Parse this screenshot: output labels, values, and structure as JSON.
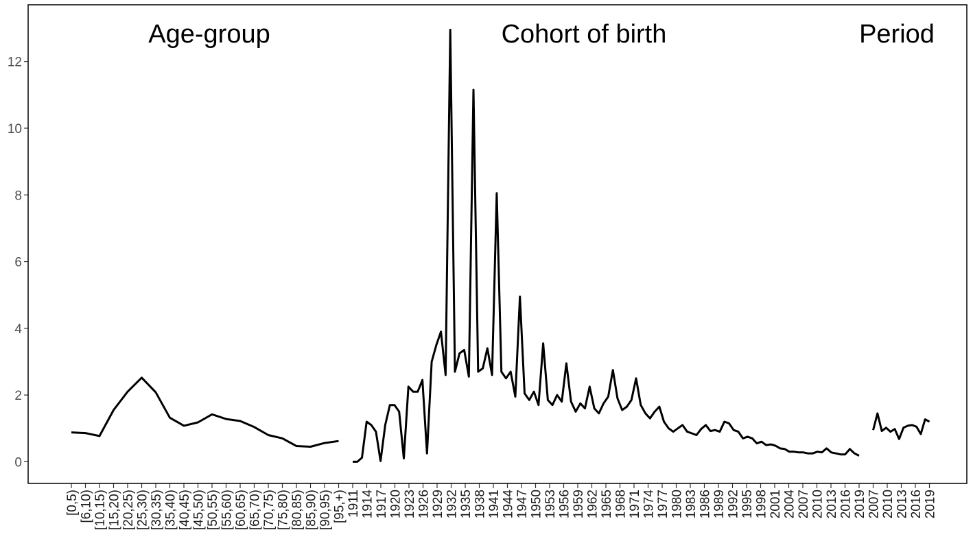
{
  "chart_data": {
    "type": "line",
    "title": "",
    "xlabel": "",
    "ylabel": "",
    "ylim": [
      -0.65,
      13.7
    ],
    "y_ticks": [
      0,
      2,
      4,
      6,
      8,
      10,
      12
    ],
    "y_tick_labels": [
      "0",
      "2",
      "4",
      "6",
      "8",
      "10",
      "12"
    ],
    "grid": false,
    "legend": "none",
    "line_color": "#000000",
    "panels": [
      {
        "name": "Age-group",
        "x": [
          "[0,5)",
          "[6,10)",
          "[10,15)",
          "[15,20)",
          "[20,25)",
          "[25,30)",
          "[30,35)",
          "[35,40)",
          "[40,45)",
          "[45,50)",
          "[50,55)",
          "[55,60)",
          "[60,65)",
          "[65,70)",
          "[70,75)",
          "[75,80)",
          "[80,85)",
          "[85,90)",
          "[90,95)",
          "[95,+)"
        ],
        "values": [
          0.88,
          0.86,
          0.77,
          1.55,
          2.1,
          2.52,
          2.08,
          1.32,
          1.08,
          1.18,
          1.42,
          1.28,
          1.22,
          1.04,
          0.8,
          0.7,
          0.47,
          0.45,
          0.56,
          0.62
        ]
      },
      {
        "name": "Cohort of birth",
        "x_start": 1911,
        "x_end": 2019,
        "tick_labels": [
          "1911",
          "1914",
          "1917",
          "1920",
          "1923",
          "1926",
          "1929",
          "1932",
          "1935",
          "1938",
          "1941",
          "1944",
          "1947",
          "1950",
          "1953",
          "1956",
          "1959",
          "1962",
          "1965",
          "1968",
          "1971",
          "1974",
          "1977",
          "1980",
          "1983",
          "1986",
          "1989",
          "1992",
          "1995",
          "1998",
          "2001",
          "2004",
          "2007",
          "2010",
          "2013",
          "2016",
          "2019"
        ],
        "values": [
          0,
          0,
          0.12,
          1.2,
          1.1,
          0.9,
          0.02,
          1.1,
          1.7,
          1.7,
          1.5,
          0.1,
          2.25,
          2.1,
          2.1,
          2.45,
          0.25,
          3,
          3.5,
          3.9,
          2.6,
          12.95,
          2.7,
          3.25,
          3.35,
          2.55,
          11.15,
          2.7,
          2.8,
          3.4,
          2.6,
          8.05,
          2.7,
          2.5,
          2.7,
          1.95,
          4.95,
          2.05,
          1.85,
          2.1,
          1.7,
          3.55,
          1.85,
          1.7,
          2,
          1.8,
          2.95,
          1.8,
          1.5,
          1.75,
          1.6,
          2.25,
          1.6,
          1.45,
          1.75,
          1.95,
          2.75,
          1.9,
          1.55,
          1.65,
          1.85,
          2.5,
          1.7,
          1.45,
          1.3,
          1.5,
          1.65,
          1.2,
          1,
          0.9,
          1,
          1.1,
          0.9,
          0.85,
          0.8,
          0.98,
          1.1,
          0.92,
          0.95,
          0.9,
          1.2,
          1.15,
          0.95,
          0.9,
          0.7,
          0.75,
          0.7,
          0.55,
          0.6,
          0.5,
          0.52,
          0.48,
          0.4,
          0.38,
          0.3,
          0.3,
          0.28,
          0.28,
          0.25,
          0.25,
          0.3,
          0.28,
          0.4,
          0.28,
          0.25,
          0.22,
          0.22,
          0.38,
          0.25,
          0.18
        ]
      },
      {
        "name": "Period",
        "x_start": 2007,
        "x_end": 2019,
        "tick_labels": [
          "2007",
          "2010",
          "2013",
          "2016",
          "2019"
        ],
        "values": [
          0.95,
          1.45,
          0.92,
          1.02,
          0.9,
          0.98,
          0.68,
          1.02,
          1.08,
          1.1,
          1.05,
          0.83,
          1.27,
          1.2
        ]
      }
    ]
  }
}
